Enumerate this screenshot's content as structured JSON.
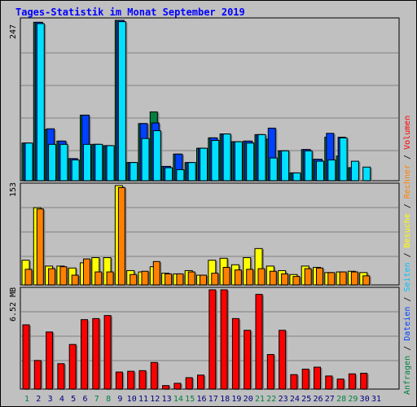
{
  "title": "Tages-Statistik im Monat September 2019",
  "legend_top": {
    "parts": [
      {
        "text": "Anfragen",
        "color": "#008040"
      },
      {
        "text": " / ",
        "color": "#000000"
      },
      {
        "text": "Dateien",
        "color": "#0040ff"
      },
      {
        "text": " / ",
        "color": "#000000"
      },
      {
        "text": "Seiten",
        "color": "#00c0ff"
      },
      {
        "text": " / ",
        "color": "#000000"
      },
      {
        "text": "Besuche",
        "color": "#ffff00"
      },
      {
        "text": " / ",
        "color": "#000000"
      },
      {
        "text": "Rechner",
        "color": "#ff8000"
      },
      {
        "text": " / ",
        "color": "#000000"
      },
      {
        "text": "Volumen",
        "color": "#ff0000"
      }
    ]
  },
  "panel_labels": {
    "hits": "247",
    "visits": "153",
    "volume": "6.52 MB"
  },
  "colors": {
    "anfragen": "#008040",
    "dateien": "#0040ff",
    "seiten": "#00e0ff",
    "besuche": "#ffff00",
    "rechner": "#ff8000",
    "volumen": "#ff0000",
    "weekend_label": "#008040",
    "weekday_label": "#000080"
  },
  "chart_data": [
    {
      "type": "bar",
      "title": "Tages-Statistik im Monat September 2019",
      "categories": [
        "1",
        "2",
        "3",
        "4",
        "5",
        "6",
        "7",
        "8",
        "9",
        "10",
        "11",
        "12",
        "13",
        "14",
        "15",
        "16",
        "17",
        "18",
        "19",
        "20",
        "21",
        "22",
        "23",
        "24",
        "25",
        "26",
        "27",
        "28",
        "29",
        "30",
        "31"
      ],
      "weekend_days": [
        1,
        7,
        8,
        14,
        15,
        21,
        22,
        28,
        29
      ],
      "ylim": [
        0,
        247
      ],
      "series": [
        {
          "name": "Anfragen",
          "values": [
            58,
            244,
            79,
            61,
            34,
            101,
            56,
            54,
            247,
            28,
            88,
            106,
            22,
            41,
            28,
            50,
            66,
            72,
            60,
            61,
            71,
            64,
            46,
            12,
            48,
            33,
            67,
            38,
            20,
            0,
            0
          ]
        },
        {
          "name": "Dateien",
          "values": [
            58,
            244,
            80,
            61,
            34,
            101,
            56,
            54,
            247,
            28,
            88,
            89,
            22,
            41,
            28,
            50,
            66,
            72,
            60,
            61,
            71,
            81,
            46,
            12,
            48,
            33,
            73,
            67,
            20,
            0,
            0
          ]
        },
        {
          "name": "Seiten",
          "values": [
            58,
            242,
            56,
            56,
            32,
            56,
            56,
            54,
            245,
            28,
            65,
            77,
            20,
            17,
            28,
            50,
            62,
            72,
            60,
            58,
            71,
            35,
            46,
            12,
            46,
            30,
            32,
            66,
            30,
            21,
            0
          ]
        }
      ]
    },
    {
      "type": "bar",
      "ylim": [
        0,
        153
      ],
      "series": [
        {
          "name": "Besuche",
          "values": [
            38,
            119,
            29,
            29,
            26,
            34,
            42,
            42,
            153,
            22,
            20,
            28,
            18,
            17,
            22,
            15,
            38,
            41,
            31,
            42,
            56,
            29,
            22,
            16,
            29,
            27,
            19,
            20,
            21,
            19,
            0
          ]
        },
        {
          "name": "Rechner",
          "values": [
            24,
            117,
            25,
            28,
            15,
            40,
            20,
            20,
            150,
            16,
            21,
            36,
            17,
            17,
            20,
            15,
            18,
            27,
            23,
            24,
            25,
            21,
            17,
            13,
            25,
            26,
            19,
            20,
            20,
            14,
            0
          ]
        }
      ]
    },
    {
      "type": "bar",
      "ylim": [
        0,
        6.52
      ],
      "ylabel": "6.52 MB",
      "series": [
        {
          "name": "Volumen",
          "values": [
            4.22,
            1.88,
            3.75,
            1.67,
            2.93,
            4.56,
            4.63,
            4.83,
            1.12,
            1.17,
            1.21,
            1.75,
            0.23,
            0.38,
            0.75,
            0.92,
            6.52,
            6.52,
            4.63,
            3.86,
            6.22,
            2.27,
            3.86,
            0.95,
            1.31,
            1.44,
            0.86,
            0.66,
            1.0,
            1.04,
            0
          ]
        }
      ]
    }
  ]
}
